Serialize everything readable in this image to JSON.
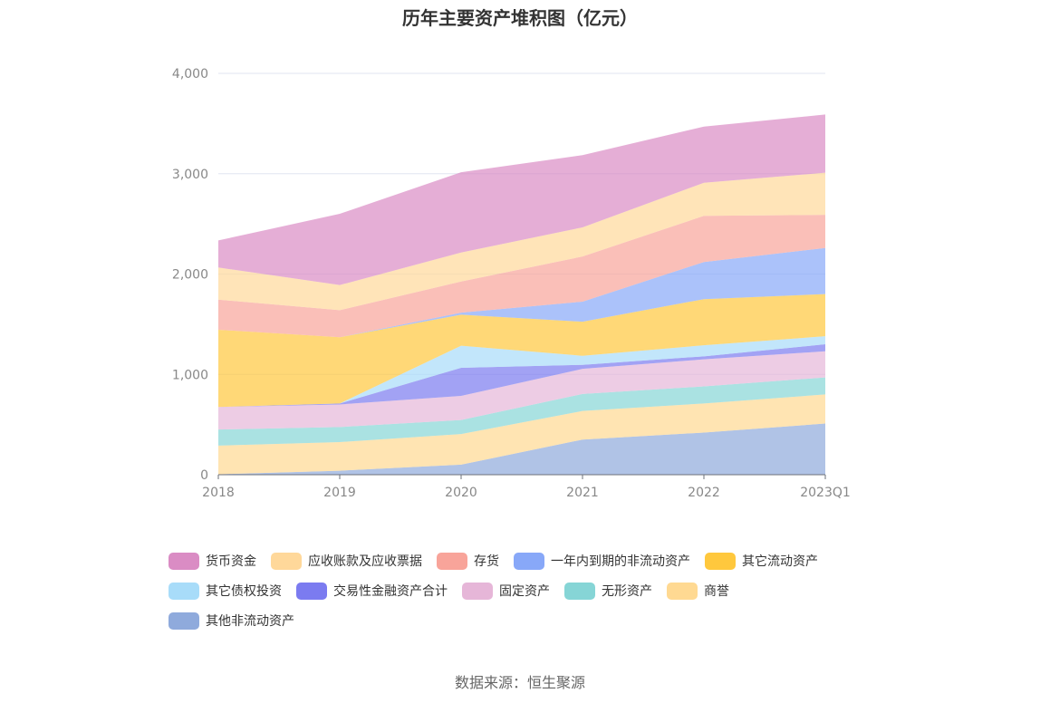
{
  "title": "历年主要资产堆积图（亿元）",
  "source": "数据来源：恒生聚源",
  "chart_data": {
    "type": "area",
    "stacked": true,
    "categories": [
      "2018",
      "2019",
      "2020",
      "2021",
      "2022",
      "2023Q1"
    ],
    "ylim": [
      0,
      4000
    ],
    "yticks": [
      0,
      1000,
      2000,
      3000,
      4000
    ],
    "ytick_labels": [
      "0",
      "1,000",
      "2,000",
      "3,000",
      "4,000"
    ],
    "grid": true,
    "legend_position": "bottom",
    "series": [
      {
        "name": "其他非流动资产",
        "color": "#8faadc",
        "values": [
          5,
          40,
          100,
          350,
          420,
          510
        ]
      },
      {
        "name": "商誉",
        "color": "#ffd992",
        "values": [
          285,
          285,
          305,
          285,
          290,
          290
        ]
      },
      {
        "name": "无形资产",
        "color": "#86d5d6",
        "values": [
          160,
          150,
          140,
          170,
          170,
          170
        ]
      },
      {
        "name": "固定资产",
        "color": "#e6b6d8",
        "values": [
          225,
          225,
          240,
          250,
          270,
          260
        ]
      },
      {
        "name": "交易性金融资产合计",
        "color": "#7b7bf0",
        "values": [
          0,
          10,
          280,
          40,
          30,
          70
        ]
      },
      {
        "name": "其它债权投资",
        "color": "#a8dcf9",
        "values": [
          0,
          0,
          220,
          90,
          110,
          80
        ]
      },
      {
        "name": "其它流动资产",
        "color": "#ffc83d",
        "values": [
          770,
          660,
          310,
          340,
          460,
          420
        ]
      },
      {
        "name": "一年内到期的非流动资产",
        "color": "#88a8f8",
        "values": [
          0,
          0,
          20,
          200,
          370,
          460
        ]
      },
      {
        "name": "存货",
        "color": "#f8a49a",
        "values": [
          300,
          270,
          310,
          450,
          460,
          330
        ]
      },
      {
        "name": "应收账款及应收票据",
        "color": "#ffd89a",
        "values": [
          320,
          250,
          290,
          290,
          330,
          420
        ]
      },
      {
        "name": "货币资金",
        "color": "#da8cc4",
        "values": [
          270,
          710,
          800,
          720,
          560,
          580
        ]
      }
    ],
    "legend_order": [
      [
        "货币资金",
        "应收账款及应收票据",
        "存货",
        "一年内到期的非流动资产",
        "其它流动资产"
      ],
      [
        "其它债权投资",
        "交易性金融资产合计",
        "固定资产",
        "无形资产",
        "商誉"
      ],
      [
        "其他非流动资产"
      ]
    ]
  }
}
